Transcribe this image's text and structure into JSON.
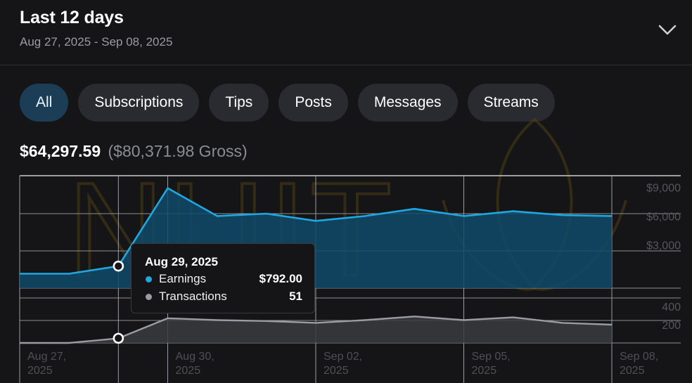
{
  "header": {
    "title": "Last 12 days",
    "range": "Aug 27, 2025 - Sep 08, 2025",
    "toggle_icon": "chevron-down-icon"
  },
  "filters": {
    "items": [
      {
        "label": "All",
        "active": true
      },
      {
        "label": "Subscriptions",
        "active": false
      },
      {
        "label": "Tips",
        "active": false
      },
      {
        "label": "Posts",
        "active": false
      },
      {
        "label": "Messages",
        "active": false
      },
      {
        "label": "Streams",
        "active": false
      }
    ]
  },
  "totals": {
    "net": "$64,297.59",
    "gross": "($80,371.98 Gross)"
  },
  "watermark": {
    "text": "NUIT"
  },
  "tooltip": {
    "date": "Aug 29, 2025",
    "rows": [
      {
        "label": "Earnings",
        "value": "$792.00"
      },
      {
        "label": "Transactions",
        "value": "51"
      }
    ]
  },
  "chart_data": {
    "type": "line",
    "x": [
      "Aug 27, 2025",
      "Aug 28, 2025",
      "Aug 29, 2025",
      "Aug 30, 2025",
      "Aug 31, 2025",
      "Sep 01, 2025",
      "Sep 02, 2025",
      "Sep 03, 2025",
      "Sep 04, 2025",
      "Sep 05, 2025",
      "Sep 06, 2025",
      "Sep 07, 2025",
      "Sep 08, 2025"
    ],
    "x_tick_labels": [
      {
        "x": "Aug 27, 2025",
        "line1": "Aug 27,",
        "line2": "2025"
      },
      {
        "x": "Aug 30, 2025",
        "line1": "Aug 30,",
        "line2": "2025"
      },
      {
        "x": "Sep 02, 2025",
        "line1": "Sep 02,",
        "line2": "2025"
      },
      {
        "x": "Sep 05, 2025",
        "line1": "Sep 05,",
        "line2": "2025"
      },
      {
        "x": "Sep 08, 2025",
        "line1": "Sep 08,",
        "line2": "2025"
      }
    ],
    "earnings": {
      "name": "Earnings",
      "color": "#1fa7e0",
      "values": [
        0,
        0,
        792,
        8900,
        6000,
        6250,
        5500,
        6000,
        6750,
        6000,
        6500,
        6100,
        6000
      ],
      "ylim": [
        -1500,
        10200
      ],
      "ticks": [
        {
          "value": 9000,
          "label": "$9,000"
        },
        {
          "value": 6000,
          "label": "$6,000"
        },
        {
          "value": 3000,
          "label": "$3,000"
        }
      ]
    },
    "transactions": {
      "name": "Transactions",
      "color": "#9a9ca3",
      "values": [
        0,
        0,
        51,
        270,
        250,
        240,
        220,
        250,
        290,
        250,
        280,
        220,
        200
      ],
      "ylim": [
        0,
        600
      ],
      "ticks": [
        {
          "value": 400,
          "label": "400"
        },
        {
          "value": 200,
          "label": "200"
        }
      ]
    },
    "highlight_index": 2,
    "grid": true
  }
}
